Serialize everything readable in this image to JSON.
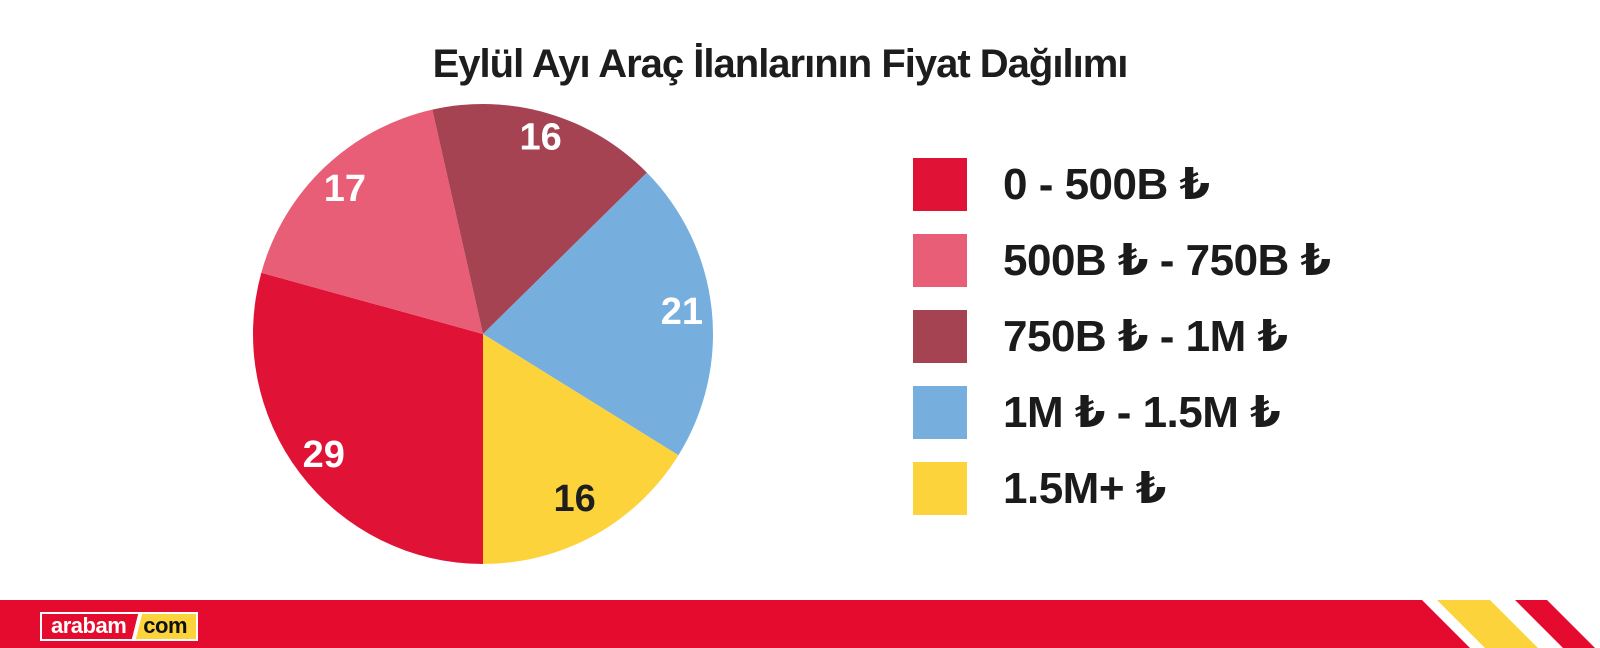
{
  "header": {
    "title": "Eylül Ayı Araç İlanlarının Fiyat Dağılımı"
  },
  "chart_data": {
    "type": "pie",
    "title": "Eylül Ayı Araç İlanlarının Fiyat Dağılımı",
    "legend_position": "right",
    "direction": "clockwise",
    "start_angle_deg": 180,
    "slices": [
      {
        "label": "0 - 500B ₺",
        "value": 29,
        "color": "#e01236",
        "value_color": "#ffffff",
        "label_r": 0.87
      },
      {
        "label": "500B ₺ - 750B ₺",
        "value": 17,
        "color": "#e85e76",
        "value_color": "#ffffff",
        "label_r": 0.87
      },
      {
        "label": "750B ₺ - 1M ₺",
        "value": 16,
        "color": "#a64352",
        "value_color": "#ffffff",
        "label_r": 0.89
      },
      {
        "label": "1M ₺ - 1.5M ₺",
        "value": 21,
        "color": "#76aedd",
        "value_color": "#ffffff",
        "label_r": 0.87
      },
      {
        "label": "1.5M+ ₺",
        "value": 16,
        "color": "#fcd33b",
        "value_color": "#1e1e1e",
        "label_r": 0.82
      }
    ]
  },
  "footer": {
    "banner_color": "#e40b2e",
    "stripe_yellow": "#fcd33b",
    "stripe_red": "#e40b2e",
    "logo": {
      "part1": "arabam",
      "part2": "com",
      "com_bg": "#fcd33b"
    }
  }
}
